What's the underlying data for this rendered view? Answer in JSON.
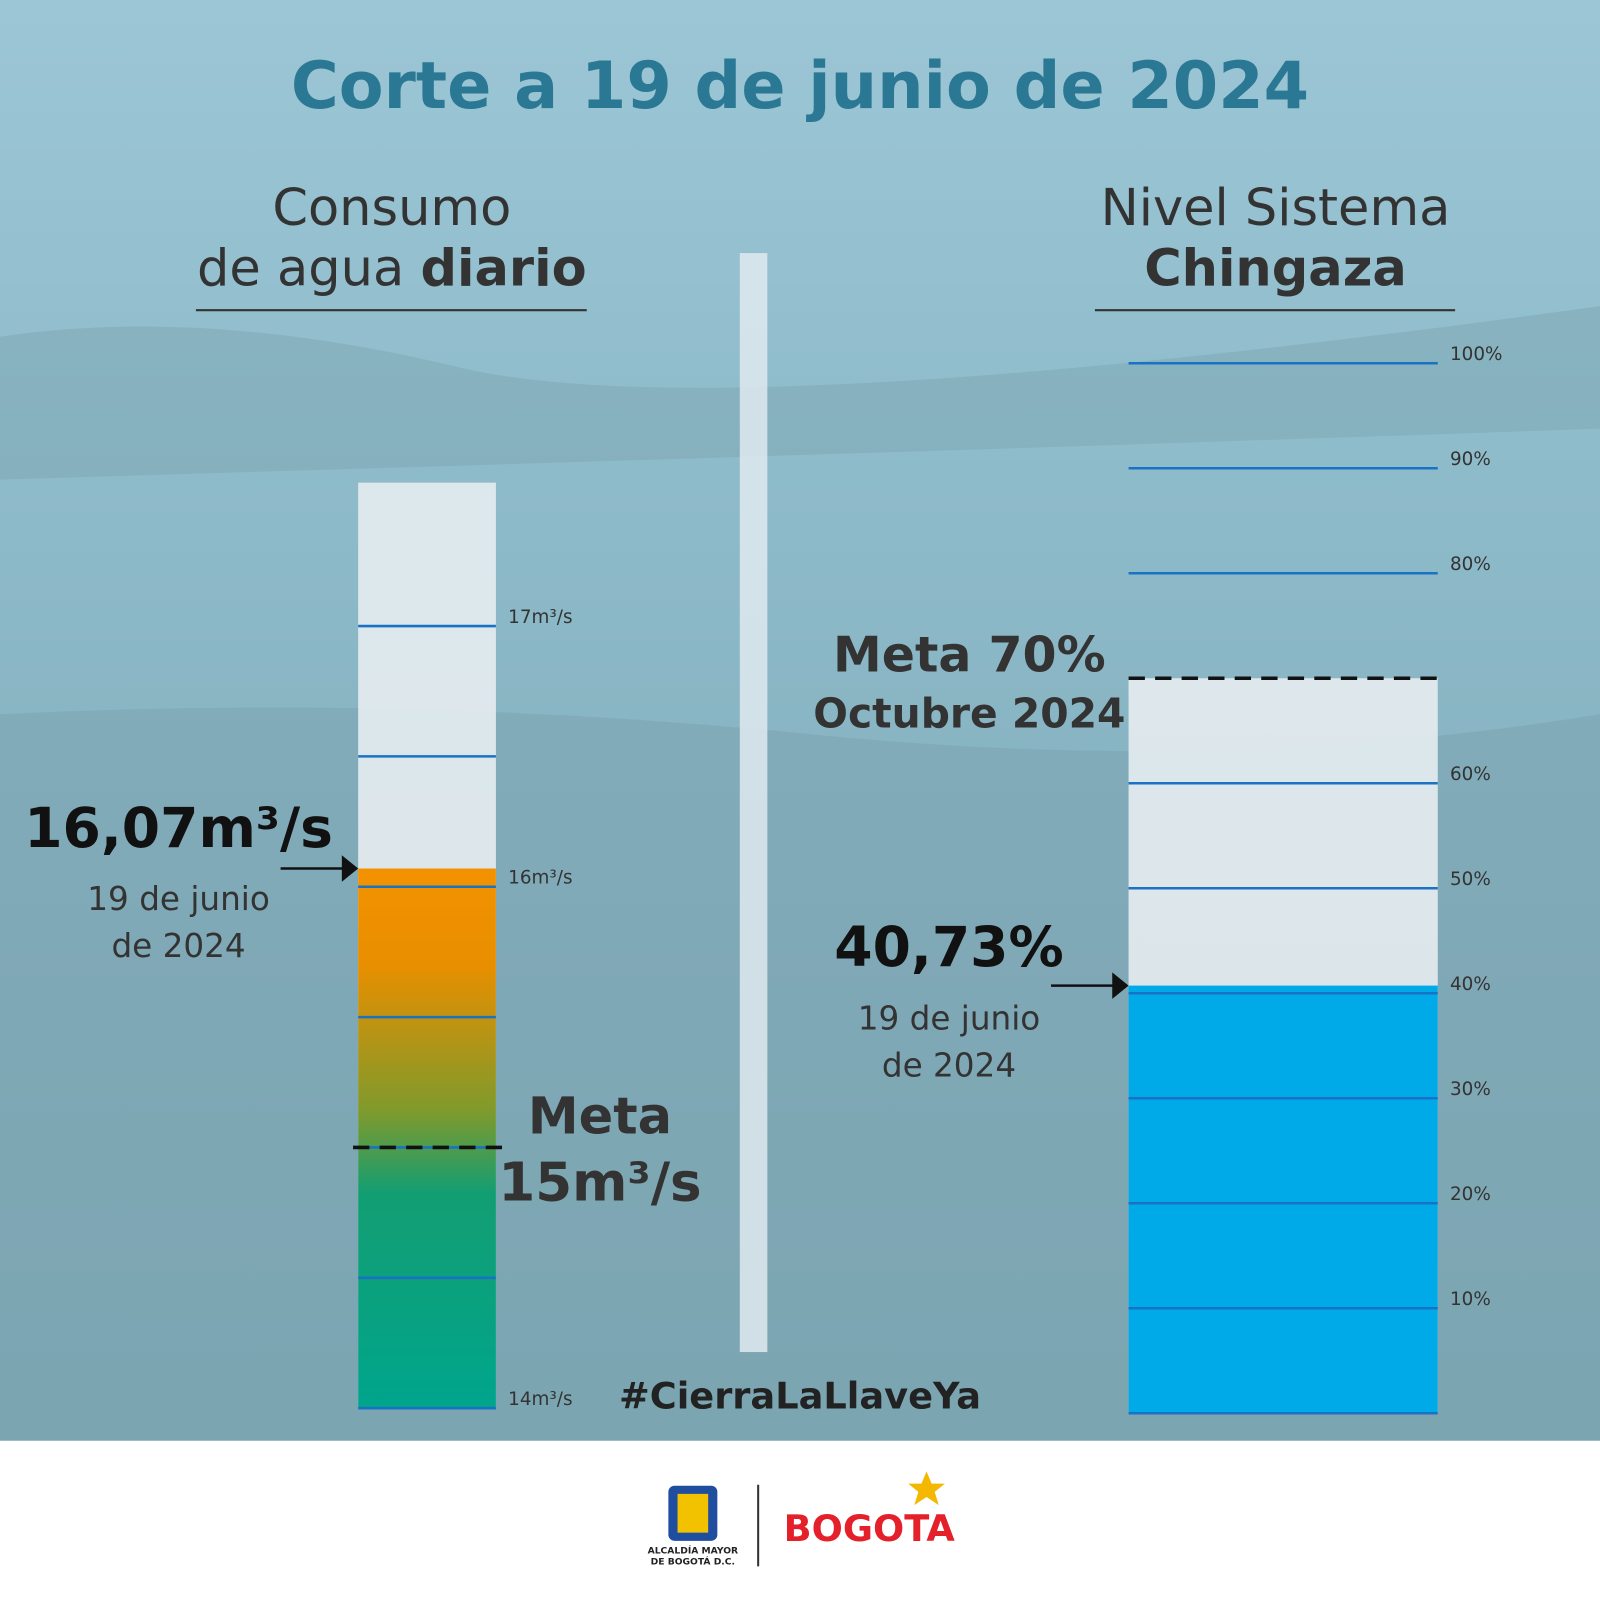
{
  "title": "Corte a 19 de junio de 2024",
  "hashtag": "#CierraLaLlaveYa",
  "footer": {
    "seal_text": [
      "ALCALDÍA MAYOR",
      "DE BOGOTÁ D.C."
    ],
    "brand": "BOGOTA"
  },
  "chart_data": [
    {
      "type": "gauge",
      "title": [
        "Consumo",
        "de agua",
        "diario"
      ],
      "ylim": [
        14,
        17.55
      ],
      "yticks": [
        {
          "value": 14,
          "label": "14m³/s"
        },
        {
          "value": 16,
          "label": "16m³/s"
        },
        {
          "value": 17,
          "label": "17m³/s"
        }
      ],
      "minor_yticks": [
        14.5,
        15,
        15.5,
        16.5
      ],
      "value": 16.07,
      "value_label": "16,07m³/s",
      "date_label": [
        "19 de junio",
        "de 2024"
      ],
      "target": 15,
      "target_label": [
        "Meta",
        "15m³/s"
      ]
    },
    {
      "type": "gauge",
      "title": [
        "Nivel Sistema",
        "Chingaza"
      ],
      "ylim": [
        0,
        100
      ],
      "yticks": [
        {
          "value": 10,
          "label": "10%"
        },
        {
          "value": 20,
          "label": "20%"
        },
        {
          "value": 30,
          "label": "30%"
        },
        {
          "value": 40,
          "label": "40%"
        },
        {
          "value": 50,
          "label": "50%"
        },
        {
          "value": 60,
          "label": "60%"
        },
        {
          "value": 80,
          "label": "80%"
        },
        {
          "value": 90,
          "label": "90%"
        },
        {
          "value": 100,
          "label": "100%"
        }
      ],
      "minor_yticks": [
        0
      ],
      "value": 40.73,
      "value_label": "40,73%",
      "date_label": [
        "19 de junio",
        "de 2024"
      ],
      "target": 70,
      "target_label": [
        "Meta 70%",
        "Octubre 2024"
      ],
      "color": "#00aae8"
    }
  ]
}
